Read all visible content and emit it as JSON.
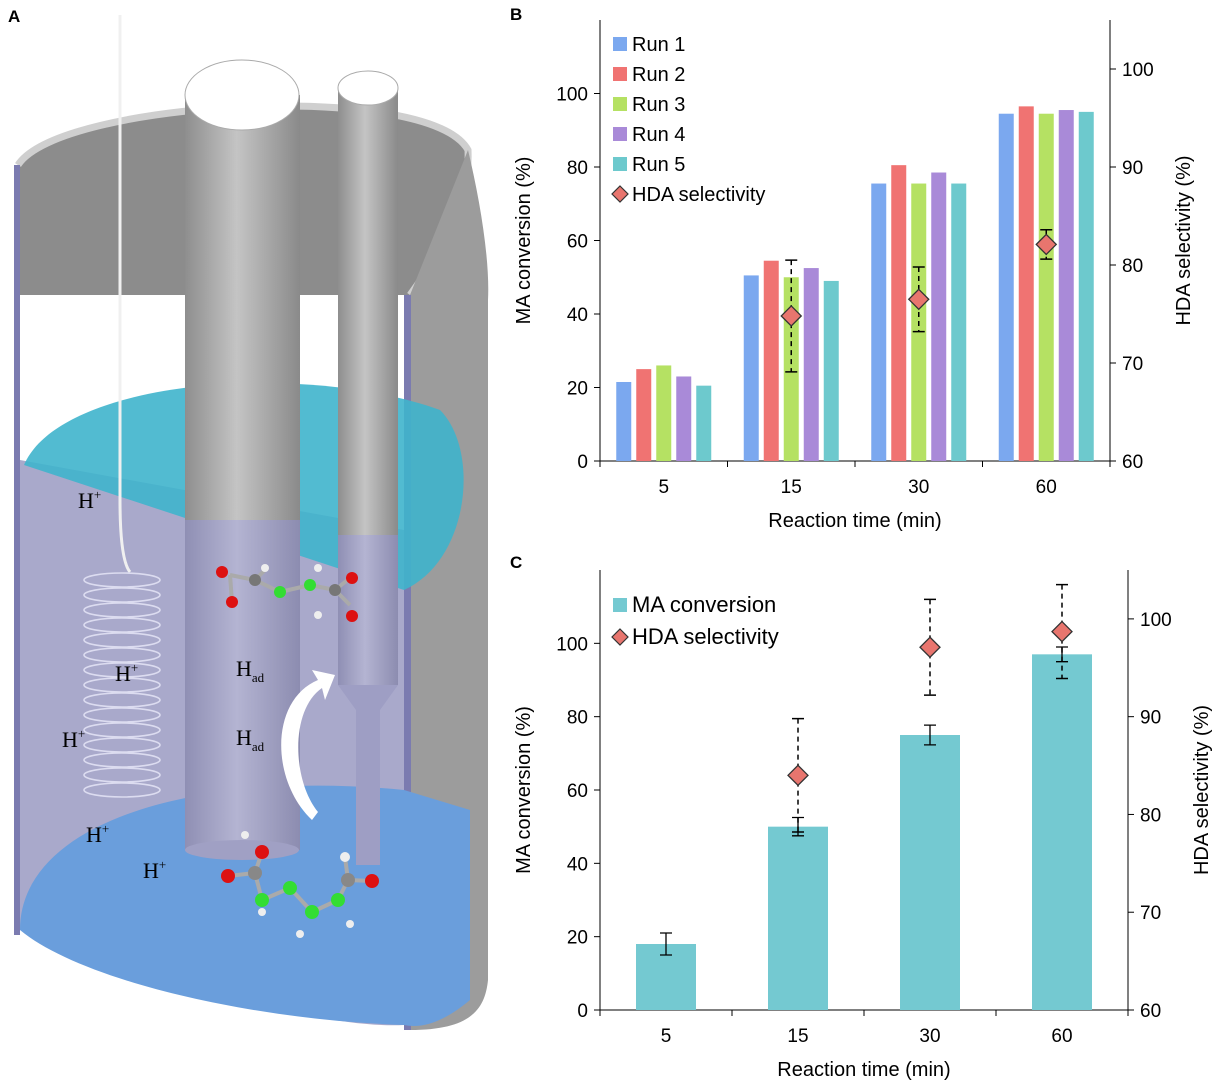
{
  "diagram": {
    "panel_label": "A",
    "labels": [
      {
        "text": "H",
        "sup": "+"
      },
      {
        "text": "H",
        "sup": "+"
      },
      {
        "text": "H",
        "sup": "+"
      },
      {
        "text": "H",
        "sup": "+"
      },
      {
        "text": "H",
        "sup": "+"
      },
      {
        "text": "H",
        "sub": "ad"
      },
      {
        "text": "H",
        "sub": "ad"
      }
    ]
  },
  "chart_data": [
    {
      "type": "bar",
      "panel_label": "B",
      "categories": [
        "5",
        "15",
        "30",
        "60"
      ],
      "xlabel": "Reaction time (min)",
      "ylabel": "MA conversion (%)",
      "y2label": "HDA selectivity (%)",
      "ylim": [
        0,
        120
      ],
      "yticks": [
        0,
        20,
        40,
        60,
        80,
        100
      ],
      "y2lim": [
        60,
        105
      ],
      "y2ticks": [
        60,
        70,
        80,
        90,
        100
      ],
      "legend": "top-left",
      "series": [
        {
          "name": "Run 1",
          "type": "bar",
          "color": "#7ba8ef",
          "values": [
            21.5,
            50.5,
            75.5,
            94.5
          ]
        },
        {
          "name": "Run 2",
          "type": "bar",
          "color": "#f07372",
          "values": [
            25,
            54.5,
            80.5,
            96.5
          ]
        },
        {
          "name": "Run 3",
          "type": "bar",
          "color": "#b5e163",
          "values": [
            26,
            50,
            75.5,
            94.5
          ]
        },
        {
          "name": "Run 4",
          "type": "bar",
          "color": "#a98ad8",
          "values": [
            23,
            52.5,
            78.5,
            95.5
          ]
        },
        {
          "name": "Run 5",
          "type": "bar",
          "color": "#6dc9cd",
          "values": [
            20.5,
            49,
            75.5,
            95
          ]
        },
        {
          "name": "HDA selectivity",
          "type": "scatter",
          "axis": "y2",
          "color": "#e8756e",
          "values": [
            null,
            74.8,
            76.5,
            82.1
          ],
          "errors": [
            null,
            5.7,
            3.3,
            1.5
          ]
        }
      ]
    },
    {
      "type": "bar",
      "panel_label": "C",
      "categories": [
        "5",
        "15",
        "30",
        "60"
      ],
      "xlabel": "Reaction time (min)",
      "ylabel": "MA conversion (%)",
      "y2label": "HDA selectivity (%)",
      "ylim": [
        0,
        120
      ],
      "yticks": [
        0,
        20,
        40,
        60,
        80,
        100
      ],
      "y2lim": [
        60,
        105
      ],
      "y2ticks": [
        60,
        70,
        80,
        90,
        100
      ],
      "legend": "top-left",
      "series": [
        {
          "name": "MA conversion",
          "type": "bar",
          "color": "#74c9d1",
          "values": [
            18,
            50,
            75,
            97
          ],
          "errors": [
            3,
            2.5,
            2.7,
            2
          ]
        },
        {
          "name": "HDA selectivity",
          "type": "scatter",
          "axis": "y2",
          "color": "#e8756e",
          "values": [
            null,
            84,
            97.1,
            98.7
          ],
          "errors": [
            null,
            5.8,
            4.9,
            4.8
          ]
        }
      ]
    }
  ]
}
